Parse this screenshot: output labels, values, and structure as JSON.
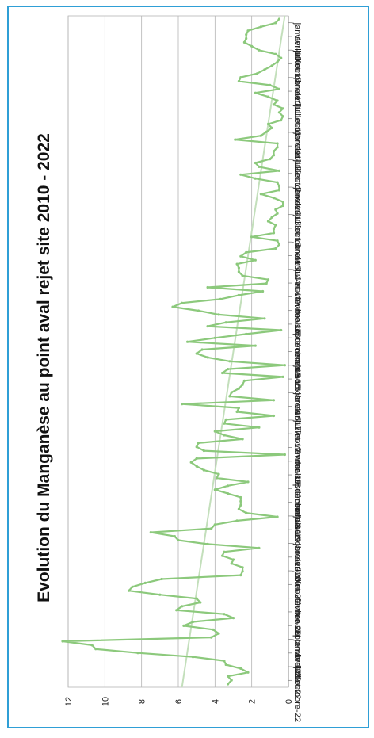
{
  "chart_data": {
    "type": "line",
    "title": "Evolution du Manganèse au point aval rejet site 2010 - 2022",
    "ylim": [
      0,
      12
    ],
    "yticks": [
      0,
      2,
      4,
      6,
      8,
      10,
      12
    ],
    "grid": true,
    "legend": "none",
    "orientation": "rotated 90° clockwise (time runs top to bottom)",
    "xlabels": [
      "janvier-10",
      "avril-10",
      "juillet-10",
      "octobre-10",
      "janvier-11",
      "avril-11",
      "juillet-11",
      "octobre-11",
      "janvier-12",
      "avril-12",
      "juillet-12",
      "octobre-12",
      "janvier-13",
      "avril-13",
      "juillet-13",
      "octobre-13",
      "janvier-14",
      "avril-14",
      "juillet-14",
      "novembre-14",
      "février-15",
      "mai-15",
      "septembre-15",
      "décembre-15",
      "mars-16",
      "juin-16",
      "octobre-16",
      "janvier-17",
      "avril-17",
      "juillet-17",
      "novembre-17",
      "février-18",
      "mai-18",
      "septembre-18",
      "décembre-18",
      "mars-19",
      "juin-19",
      "octobre-19",
      "janvier-20",
      "avril-20",
      "juillet-20",
      "novembre-20",
      "février-21",
      "mai-21",
      "septembre-21",
      "janvier-22",
      "avril-22",
      "juillet-22",
      "octobre-22"
    ],
    "series": [
      {
        "color": "#8cc97c",
        "values": [
          3.3,
          3.1,
          3.3,
          2.2,
          2.6,
          3.4,
          3.5,
          5.2,
          8.2,
          10.5,
          10.7,
          12.3,
          4.2,
          3.8,
          4.1,
          5.7,
          5.2,
          3.0,
          3.5,
          6.1,
          5.8,
          4.8,
          5.0,
          7.0,
          8.7,
          8.5,
          7.8,
          6.9,
          2.6,
          2.5,
          2.5,
          3.1,
          3.0,
          3.6,
          3.5,
          1.6,
          4.4,
          6.0,
          6.2,
          7.5,
          4.2,
          4.0,
          2.8,
          0.6,
          2.3,
          2.7,
          2.6,
          2.6,
          2.6,
          3.3,
          4.0,
          3.3,
          2.2,
          3.9,
          3.8,
          4.6,
          5.0,
          5.3,
          5.0,
          0.2,
          4.6,
          5.0,
          4.9,
          2.5,
          3.5,
          4.0,
          1.6,
          3.5,
          3.4,
          0.8,
          2.8,
          2.7,
          5.8,
          0.8,
          3.2,
          3.1,
          2.7,
          2.5,
          2.4,
          0.3,
          3.6,
          3.3,
          0.2,
          3.2,
          4.4,
          5.0,
          4.7,
          1.8,
          5.5,
          4.0,
          2.3,
          0.4,
          4.4,
          3.4,
          1.3,
          3.8,
          4.9,
          6.3,
          5.8,
          3.7,
          2.7,
          1.4,
          4.4,
          1.2,
          1.1,
          2.5,
          2.7,
          2.7,
          2.8,
          1.8,
          2.6,
          2.3,
          0.7,
          0.5,
          0.6,
          2.0,
          0.8,
          0.8,
          0.7,
          1.1,
          0.9,
          0.6,
          0.7,
          0.3,
          0.3,
          0.8,
          1.5,
          0.5,
          0.5,
          0.6,
          1.8,
          2.6,
          0.5,
          1.6,
          1.8,
          1.0,
          0.8,
          0.8,
          0.6,
          0.6,
          2.9,
          1.5,
          1.2,
          0.9,
          1.1,
          0.4,
          0.3,
          0.5,
          0.3,
          0.8,
          0.6,
          1.1,
          1.8,
          0.5,
          1.0,
          2.7,
          2.6,
          1.7,
          1.3,
          0.9,
          0.6,
          0.4,
          0.7,
          1.6,
          2.0,
          2.4,
          2.3,
          2.3,
          2.2,
          1.5,
          0.7,
          0.5
        ]
      }
    ],
    "trendline": {
      "color": "#c3dfbb",
      "start": 5.8,
      "end": 0.2
    }
  }
}
